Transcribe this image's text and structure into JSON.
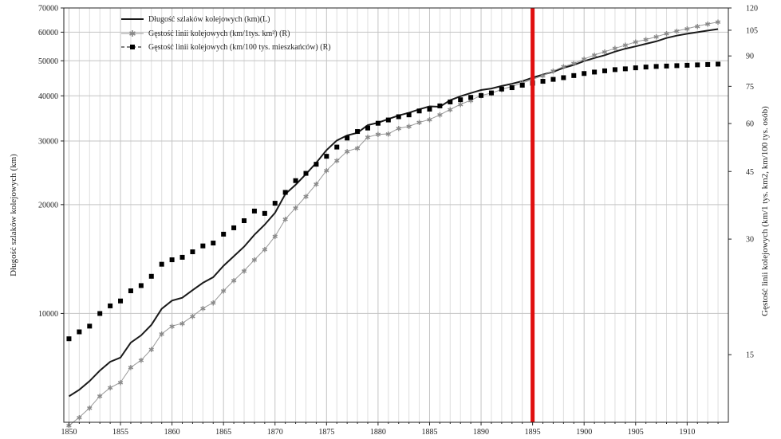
{
  "chart_data": {
    "type": "line",
    "title": "",
    "xlabel": "",
    "ylabel_left": "Długość szlaków kolejowych (km)",
    "ylabel_right": "Gęstość linii kolejowych (km/1 tys. km2, km/100 tys. osób)",
    "x_ticks": [
      "1850",
      "1855",
      "1860",
      "1865",
      "1870",
      "1875",
      "1880",
      "1885",
      "1890",
      "1895",
      "1900",
      "1905",
      "1910"
    ],
    "y_left_ticks": [
      "10000",
      "20000",
      "30000",
      "40000",
      "50000",
      "60000",
      "70000"
    ],
    "y_left_tick_values": [
      10000,
      20000,
      30000,
      40000,
      50000,
      60000,
      70000
    ],
    "y_right_ticks": [
      "15",
      "30",
      "45",
      "60",
      "75",
      "90",
      "105",
      "120"
    ],
    "y_right_tick_values": [
      15,
      30,
      45,
      60,
      75,
      90,
      105,
      120
    ],
    "y_left_scale": "log",
    "y_right_scale": "log",
    "ylim_left": [
      5000,
      70000
    ],
    "ylim_right": [
      10,
      120
    ],
    "xlim": [
      1849.5,
      1914
    ],
    "grid": true,
    "legend_position": "top-left",
    "vertical_marker": {
      "x": 1895,
      "color": "#e01010"
    },
    "x": [
      1850,
      1851,
      1852,
      1853,
      1854,
      1855,
      1856,
      1857,
      1858,
      1859,
      1860,
      1861,
      1862,
      1863,
      1864,
      1865,
      1866,
      1867,
      1868,
      1869,
      1870,
      1871,
      1872,
      1873,
      1874,
      1875,
      1876,
      1877,
      1878,
      1879,
      1880,
      1881,
      1882,
      1883,
      1884,
      1885,
      1886,
      1887,
      1888,
      1889,
      1890,
      1891,
      1892,
      1893,
      1894,
      1895,
      1896,
      1897,
      1898,
      1899,
      1900,
      1901,
      1902,
      1903,
      1904,
      1905,
      1906,
      1907,
      1908,
      1909,
      1910,
      1911,
      1912,
      1913
    ],
    "series": [
      {
        "name": "Długość szlaków kolejowych (km)(L)",
        "axis": "left",
        "color": "#1a1a1a",
        "marker": "none",
        "values": [
          5900,
          6150,
          6500,
          6950,
          7350,
          7550,
          8300,
          8700,
          9300,
          10300,
          10850,
          11050,
          11600,
          12150,
          12600,
          13550,
          14400,
          15300,
          16500,
          17600,
          19000,
          21400,
          22700,
          24300,
          26100,
          28300,
          30100,
          31100,
          31600,
          33200,
          33700,
          34500,
          35300,
          35900,
          36700,
          37400,
          37300,
          38900,
          39900,
          40700,
          41500,
          41900,
          42600,
          43200,
          43900,
          44900,
          45800,
          46600,
          47800,
          48700,
          49900,
          50900,
          51800,
          53000,
          54000,
          54800,
          55700,
          56600,
          57800,
          58700,
          59400,
          60000,
          60600,
          61200
        ]
      },
      {
        "name": "Gęstość linii kolejowych (km/1tys. km²) (R)",
        "axis": "right",
        "color": "#9a9a9a",
        "marker": "star",
        "values": [
          9.8,
          10.3,
          10.9,
          11.7,
          12.3,
          12.7,
          13.9,
          14.5,
          15.5,
          17.0,
          17.8,
          18.1,
          18.9,
          19.8,
          20.5,
          22.0,
          23.4,
          24.8,
          26.5,
          28.2,
          30.5,
          33.8,
          36.2,
          38.8,
          41.7,
          45.3,
          48.0,
          50.8,
          51.8,
          55.3,
          56.2,
          56.4,
          58.3,
          59.0,
          60.4,
          61.5,
          63.2,
          65.3,
          67.3,
          69.0,
          71.0,
          72.0,
          73.6,
          75.0,
          76.5,
          78.2,
          80.0,
          82.2,
          84.4,
          86.0,
          88.3,
          90.5,
          92.3,
          94.2,
          96.0,
          97.9,
          99.3,
          101.0,
          102.9,
          104.5,
          106.0,
          107.6,
          109.0,
          110.3
        ]
      },
      {
        "name": "Gęstość linii kolejowych (km/100 tys. mieszkańców) (R)",
        "axis": "right",
        "color": "#000000",
        "marker": "square",
        "values": [
          16.5,
          17.2,
          17.8,
          19.2,
          20.1,
          20.7,
          22.0,
          22.7,
          24.0,
          25.8,
          26.5,
          26.9,
          27.8,
          28.8,
          29.3,
          30.9,
          32.1,
          33.5,
          35.5,
          35.0,
          37.2,
          39.7,
          42.6,
          44.5,
          47.0,
          49.3,
          52.1,
          55.0,
          57.2,
          58.4,
          60.1,
          61.3,
          62.5,
          63.2,
          64.7,
          65.4,
          66.7,
          68.3,
          69.2,
          70.2,
          71.0,
          72.1,
          73.8,
          74.4,
          75.5,
          76.4,
          77.3,
          78.2,
          79.0,
          80.0,
          81.0,
          81.7,
          82.3,
          82.9,
          83.3,
          83.8,
          84.2,
          84.5,
          84.7,
          84.9,
          85.1,
          85.3,
          85.5,
          85.7
        ]
      }
    ]
  }
}
